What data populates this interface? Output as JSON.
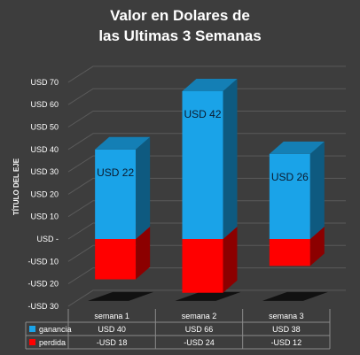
{
  "chart_data": {
    "type": "bar",
    "stacked": true,
    "three_d": true,
    "title_lines": [
      "Valor en Dolares  de",
      "las Ultimas 3 Semanas"
    ],
    "ylabel": "TÍTULO DEL EJE",
    "categories": [
      "semana 1",
      "semana 2",
      "semana 3"
    ],
    "ylim": [
      -30,
      70
    ],
    "yticks": [
      70,
      60,
      50,
      40,
      30,
      20,
      10,
      0,
      -10,
      -20,
      -30
    ],
    "ytick_labels": [
      "USD 70",
      "USD 60",
      "USD 50",
      "USD 40",
      "USD 30",
      "USD 20",
      "USD 10",
      "USD -",
      "-USD 10",
      "-USD 20",
      "-USD 30"
    ],
    "series": [
      {
        "name": "ganancia",
        "values": [
          40,
          66,
          38
        ],
        "color": "#1aa3e8",
        "table_labels": [
          "USD 40",
          "USD 66",
          "USD 38"
        ]
      },
      {
        "name": "perdida",
        "values": [
          -18,
          -24,
          -12
        ],
        "color": "#ff0000",
        "table_labels": [
          "-USD 18",
          "-USD 24",
          "-USD 12"
        ]
      }
    ],
    "data_labels": [
      "USD 22",
      "USD 42",
      "USD 26"
    ],
    "grid": true,
    "legend": "data-table"
  }
}
